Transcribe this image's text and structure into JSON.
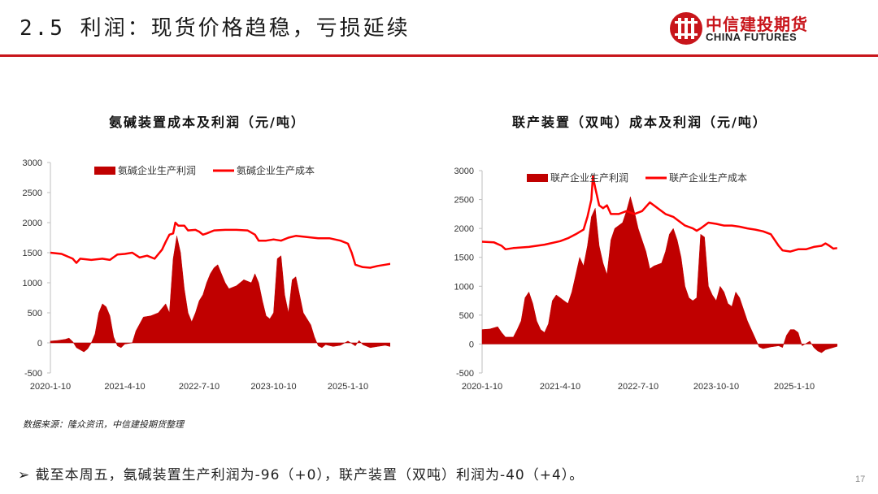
{
  "header": {
    "title": "2.5 利润：现货价格趋稳，亏损延续",
    "logo_cn": "中信建投期货",
    "logo_en": "CHINA FUTURES"
  },
  "colors": {
    "accent": "#c8151b",
    "profit_fill": "#c00000",
    "cost_line": "#ff0000"
  },
  "footer": {
    "source": "数据来源：隆众资讯，中信建投期货整理",
    "bullet_marker": "➢",
    "bullet_text": "截至本周五，氨碱装置生产利润为-96（+0），联产装置（双吨）利润为-40（+4）。",
    "page_number": "17"
  },
  "chart_data": [
    {
      "type": "area",
      "title": "氨碱装置成本及利润（元/吨）",
      "ylim": [
        -500,
        3000
      ],
      "yticks": [
        "-500",
        "0",
        "500",
        "1000",
        "1500",
        "2000",
        "2500",
        "3000"
      ],
      "xticks": [
        "2020-1-10",
        "2021-4-10",
        "2022-7-10",
        "2023-10-10",
        "2025-1-10"
      ],
      "legend": [
        "氨碱企业生产利润",
        "氨碱企业生产成本"
      ],
      "legend_position": "top",
      "series": [
        {
          "name": "氨碱企业生产利润",
          "style": "area",
          "points": [
            [
              0,
              30
            ],
            [
              0.1,
              40
            ],
            [
              0.2,
              60
            ],
            [
              0.25,
              80
            ],
            [
              0.3,
              20
            ],
            [
              0.35,
              -80
            ],
            [
              0.45,
              -150
            ],
            [
              0.5,
              -100
            ],
            [
              0.55,
              0
            ],
            [
              0.6,
              150
            ],
            [
              0.65,
              500
            ],
            [
              0.7,
              650
            ],
            [
              0.75,
              600
            ],
            [
              0.8,
              450
            ],
            [
              0.85,
              100
            ],
            [
              0.9,
              -50
            ],
            [
              0.95,
              -80
            ],
            [
              1.0,
              -20
            ],
            [
              1.1,
              0
            ],
            [
              1.15,
              200
            ],
            [
              1.25,
              430
            ],
            [
              1.35,
              450
            ],
            [
              1.45,
              500
            ],
            [
              1.55,
              650
            ],
            [
              1.6,
              500
            ],
            [
              1.65,
              1400
            ],
            [
              1.7,
              1780
            ],
            [
              1.75,
              1500
            ],
            [
              1.8,
              900
            ],
            [
              1.85,
              500
            ],
            [
              1.9,
              350
            ],
            [
              1.95,
              500
            ],
            [
              2.0,
              700
            ],
            [
              2.05,
              800
            ],
            [
              2.1,
              1000
            ],
            [
              2.15,
              1150
            ],
            [
              2.2,
              1250
            ],
            [
              2.25,
              1300
            ],
            [
              2.3,
              1150
            ],
            [
              2.35,
              1000
            ],
            [
              2.4,
              900
            ],
            [
              2.5,
              950
            ],
            [
              2.6,
              1050
            ],
            [
              2.7,
              1000
            ],
            [
              2.75,
              1150
            ],
            [
              2.8,
              1000
            ],
            [
              2.85,
              700
            ],
            [
              2.9,
              450
            ],
            [
              2.95,
              400
            ],
            [
              3.0,
              500
            ],
            [
              3.05,
              1400
            ],
            [
              3.1,
              1450
            ],
            [
              3.15,
              800
            ],
            [
              3.2,
              500
            ],
            [
              3.25,
              1050
            ],
            [
              3.3,
              1100
            ],
            [
              3.35,
              800
            ],
            [
              3.4,
              500
            ],
            [
              3.45,
              400
            ],
            [
              3.5,
              300
            ],
            [
              3.55,
              100
            ],
            [
              3.6,
              -50
            ],
            [
              3.65,
              -80
            ],
            [
              3.7,
              -30
            ],
            [
              3.8,
              -60
            ],
            [
              3.9,
              -40
            ],
            [
              4.0,
              30
            ],
            [
              4.05,
              -10
            ],
            [
              4.1,
              -50
            ],
            [
              4.15,
              40
            ],
            [
              4.2,
              -30
            ],
            [
              4.3,
              -80
            ],
            [
              4.4,
              -60
            ],
            [
              4.5,
              -40
            ],
            [
              4.6,
              -70
            ],
            [
              4.65,
              -96
            ]
          ]
        },
        {
          "name": "氨碱企业生产成本",
          "style": "line",
          "points": [
            [
              0,
              1500
            ],
            [
              0.15,
              1480
            ],
            [
              0.3,
              1400
            ],
            [
              0.35,
              1330
            ],
            [
              0.4,
              1400
            ],
            [
              0.55,
              1380
            ],
            [
              0.7,
              1400
            ],
            [
              0.8,
              1380
            ],
            [
              0.9,
              1470
            ],
            [
              1.0,
              1480
            ],
            [
              1.1,
              1500
            ],
            [
              1.2,
              1420
            ],
            [
              1.3,
              1450
            ],
            [
              1.4,
              1400
            ],
            [
              1.5,
              1550
            ],
            [
              1.55,
              1680
            ],
            [
              1.6,
              1800
            ],
            [
              1.65,
              1820
            ],
            [
              1.68,
              2000
            ],
            [
              1.72,
              1950
            ],
            [
              1.8,
              1950
            ],
            [
              1.85,
              1870
            ],
            [
              1.95,
              1880
            ],
            [
              2.0,
              1850
            ],
            [
              2.05,
              1800
            ],
            [
              2.1,
              1820
            ],
            [
              2.2,
              1870
            ],
            [
              2.35,
              1880
            ],
            [
              2.5,
              1880
            ],
            [
              2.65,
              1870
            ],
            [
              2.75,
              1800
            ],
            [
              2.8,
              1700
            ],
            [
              2.9,
              1700
            ],
            [
              3.0,
              1720
            ],
            [
              3.1,
              1700
            ],
            [
              3.2,
              1750
            ],
            [
              3.3,
              1780
            ],
            [
              3.45,
              1760
            ],
            [
              3.6,
              1740
            ],
            [
              3.75,
              1740
            ],
            [
              3.9,
              1700
            ],
            [
              4.0,
              1650
            ],
            [
              4.05,
              1500
            ],
            [
              4.1,
              1300
            ],
            [
              4.2,
              1260
            ],
            [
              4.3,
              1250
            ],
            [
              4.4,
              1280
            ],
            [
              4.5,
              1300
            ],
            [
              4.6,
              1320
            ],
            [
              4.65,
              1320
            ]
          ]
        }
      ]
    },
    {
      "type": "area",
      "title": "联产装置（双吨）成本及利润（元/吨）",
      "ylim": [
        -500,
        3000
      ],
      "yticks": [
        "-500",
        "0",
        "500",
        "1000",
        "1500",
        "2000",
        "2500",
        "3000"
      ],
      "xticks": [
        "2020-1-10",
        "2021-4-10",
        "2022-7-10",
        "2023-10-10",
        "2025-1-10"
      ],
      "legend": [
        "联产企业生产利润",
        "联产企业生产成本"
      ],
      "legend_position": "top",
      "series": [
        {
          "name": "联产企业生产利润",
          "style": "area",
          "points": [
            [
              0,
              250
            ],
            [
              0.1,
              260
            ],
            [
              0.2,
              300
            ],
            [
              0.25,
              200
            ],
            [
              0.3,
              120
            ],
            [
              0.4,
              120
            ],
            [
              0.45,
              250
            ],
            [
              0.5,
              400
            ],
            [
              0.55,
              800
            ],
            [
              0.6,
              900
            ],
            [
              0.65,
              700
            ],
            [
              0.7,
              400
            ],
            [
              0.75,
              250
            ],
            [
              0.8,
              200
            ],
            [
              0.85,
              350
            ],
            [
              0.9,
              750
            ],
            [
              0.95,
              850
            ],
            [
              1.0,
              800
            ],
            [
              1.05,
              750
            ],
            [
              1.1,
              700
            ],
            [
              1.15,
              900
            ],
            [
              1.2,
              1200
            ],
            [
              1.25,
              1500
            ],
            [
              1.3,
              1350
            ],
            [
              1.35,
              1700
            ],
            [
              1.4,
              2200
            ],
            [
              1.45,
              2350
            ],
            [
              1.5,
              1700
            ],
            [
              1.55,
              1400
            ],
            [
              1.6,
              1200
            ],
            [
              1.65,
              1800
            ],
            [
              1.7,
              2000
            ],
            [
              1.8,
              2100
            ],
            [
              1.85,
              2300
            ],
            [
              1.9,
              2550
            ],
            [
              1.95,
              2300
            ],
            [
              2.0,
              2000
            ],
            [
              2.05,
              1800
            ],
            [
              2.1,
              1600
            ],
            [
              2.15,
              1300
            ],
            [
              2.2,
              1350
            ],
            [
              2.3,
              1400
            ],
            [
              2.35,
              1600
            ],
            [
              2.4,
              1900
            ],
            [
              2.45,
              2000
            ],
            [
              2.5,
              1800
            ],
            [
              2.55,
              1500
            ],
            [
              2.6,
              1000
            ],
            [
              2.65,
              800
            ],
            [
              2.7,
              750
            ],
            [
              2.75,
              800
            ],
            [
              2.8,
              1900
            ],
            [
              2.85,
              1850
            ],
            [
              2.9,
              1000
            ],
            [
              2.95,
              850
            ],
            [
              3.0,
              750
            ],
            [
              3.05,
              1000
            ],
            [
              3.1,
              900
            ],
            [
              3.15,
              700
            ],
            [
              3.2,
              650
            ],
            [
              3.25,
              900
            ],
            [
              3.3,
              800
            ],
            [
              3.35,
              600
            ],
            [
              3.4,
              400
            ],
            [
              3.5,
              100
            ],
            [
              3.55,
              -50
            ],
            [
              3.6,
              -80
            ],
            [
              3.7,
              -50
            ],
            [
              3.8,
              -30
            ],
            [
              3.85,
              -60
            ],
            [
              3.9,
              150
            ],
            [
              3.95,
              250
            ],
            [
              4.0,
              250
            ],
            [
              4.05,
              200
            ],
            [
              4.1,
              -30
            ],
            [
              4.2,
              50
            ],
            [
              4.25,
              -60
            ],
            [
              4.3,
              -120
            ],
            [
              4.35,
              -150
            ],
            [
              4.4,
              -100
            ],
            [
              4.5,
              -60
            ],
            [
              4.55,
              -40
            ]
          ]
        },
        {
          "name": "联产企业生产成本",
          "style": "line",
          "points": [
            [
              0,
              1770
            ],
            [
              0.15,
              1760
            ],
            [
              0.25,
              1700
            ],
            [
              0.3,
              1640
            ],
            [
              0.4,
              1660
            ],
            [
              0.6,
              1680
            ],
            [
              0.8,
              1720
            ],
            [
              1.0,
              1780
            ],
            [
              1.1,
              1830
            ],
            [
              1.2,
              1900
            ],
            [
              1.3,
              1980
            ],
            [
              1.35,
              2200
            ],
            [
              1.4,
              2500
            ],
            [
              1.42,
              2900
            ],
            [
              1.45,
              2700
            ],
            [
              1.5,
              2400
            ],
            [
              1.55,
              2350
            ],
            [
              1.6,
              2400
            ],
            [
              1.65,
              2250
            ],
            [
              1.75,
              2250
            ],
            [
              1.85,
              2300
            ],
            [
              1.95,
              2250
            ],
            [
              2.05,
              2300
            ],
            [
              2.15,
              2450
            ],
            [
              2.25,
              2350
            ],
            [
              2.35,
              2250
            ],
            [
              2.45,
              2200
            ],
            [
              2.5,
              2150
            ],
            [
              2.6,
              2050
            ],
            [
              2.7,
              2000
            ],
            [
              2.75,
              1960
            ],
            [
              2.8,
              2000
            ],
            [
              2.9,
              2100
            ],
            [
              3.0,
              2080
            ],
            [
              3.1,
              2050
            ],
            [
              3.2,
              2050
            ],
            [
              3.3,
              2030
            ],
            [
              3.4,
              2000
            ],
            [
              3.5,
              1980
            ],
            [
              3.6,
              1950
            ],
            [
              3.7,
              1900
            ],
            [
              3.75,
              1800
            ],
            [
              3.8,
              1700
            ],
            [
              3.85,
              1620
            ],
            [
              3.95,
              1600
            ],
            [
              4.05,
              1640
            ],
            [
              4.15,
              1640
            ],
            [
              4.25,
              1680
            ],
            [
              4.35,
              1700
            ],
            [
              4.4,
              1740
            ],
            [
              4.45,
              1700
            ],
            [
              4.5,
              1650
            ],
            [
              4.55,
              1660
            ]
          ]
        }
      ]
    }
  ]
}
